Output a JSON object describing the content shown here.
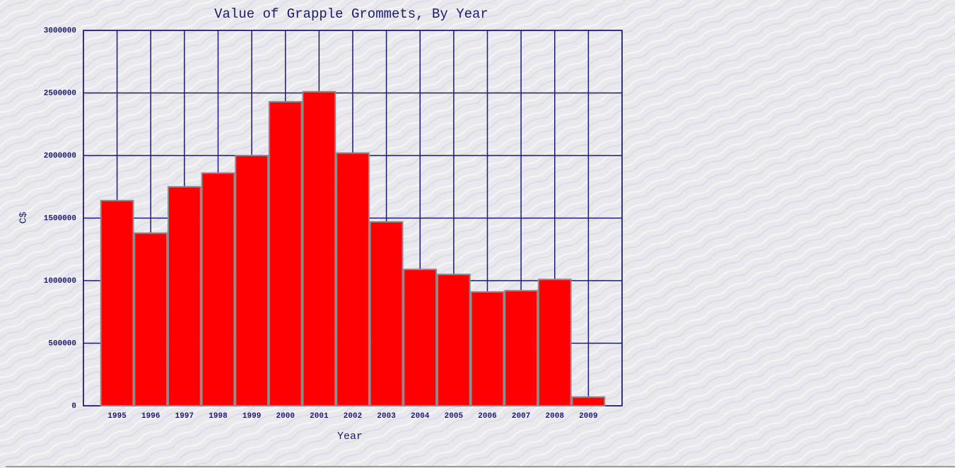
{
  "chart_data": {
    "type": "bar",
    "title": "Value of Grapple Grommets, By Year",
    "x_label": "Year",
    "y_label": "C$",
    "categories": [
      "1995",
      "1996",
      "1997",
      "1998",
      "1999",
      "2000",
      "2001",
      "2002",
      "2003",
      "2004",
      "2005",
      "2006",
      "2007",
      "2008",
      "2009"
    ],
    "values": [
      1640000,
      1380000,
      1750000,
      1860000,
      2000000,
      2430000,
      2510000,
      2020000,
      1470000,
      1090000,
      1050000,
      910000,
      920000,
      1010000,
      70000
    ],
    "color": "#ff0000",
    "ylim": [
      0,
      3000000
    ],
    "yticks": [
      0,
      500000,
      1000000,
      1500000,
      2000000,
      2500000,
      3000000
    ],
    "grid": true
  }
}
